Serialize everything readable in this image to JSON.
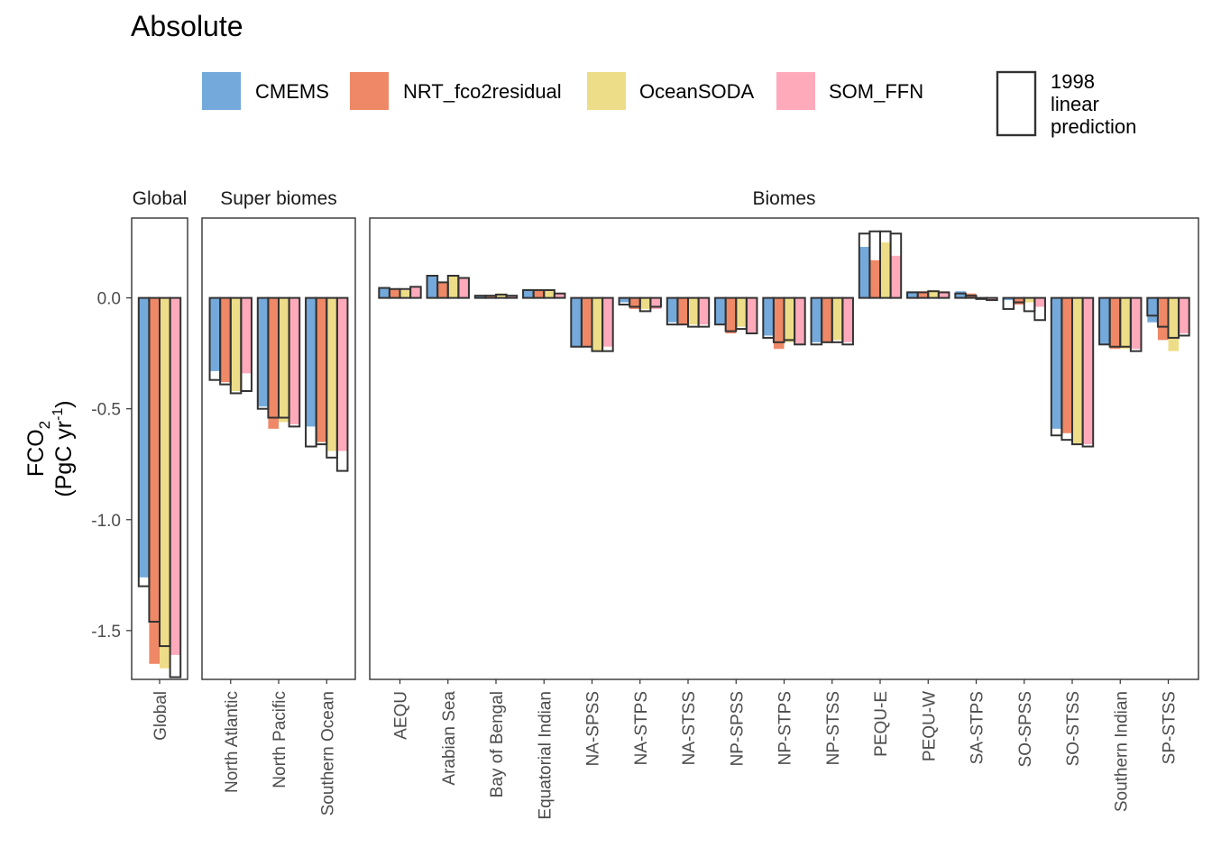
{
  "chart_data": {
    "type": "bar",
    "title": "Absolute",
    "ylabel": "FCO2 (PgC yr-1)",
    "ylabel_parts": {
      "line1_main": "FCO",
      "line1_sub": "2",
      "line2_main": "(PgC yr",
      "line2_sup": "-1",
      "line2_end": ")"
    },
    "ylim": [
      -1.72,
      0.36
    ],
    "yticks": [
      0.0,
      -0.5,
      -1.0,
      -1.5
    ],
    "ytick_labels": [
      "0.0",
      "-0.5",
      "-1.0",
      "-1.5"
    ],
    "series": [
      {
        "name": "CMEMS",
        "color": "#74A9DB"
      },
      {
        "name": "NRT_fco2residual",
        "color": "#EE8866"
      },
      {
        "name": "OceanSODA",
        "color": "#EEDD88"
      },
      {
        "name": "SOM_FFN",
        "color": "#FFAABB"
      }
    ],
    "outline_legend": {
      "line1": "1998",
      "line2": "linear",
      "line3": "prediction"
    },
    "grid": false,
    "legend_position": "top",
    "panels": [
      {
        "strip": "Global",
        "categories": [
          {
            "label": "Global",
            "values": [
              -1.26,
              -1.65,
              -1.67,
              -1.61
            ],
            "prediction": [
              -1.3,
              -1.46,
              -1.57,
              -1.71
            ]
          }
        ]
      },
      {
        "strip": "Super biomes",
        "categories": [
          {
            "label": "North Atlantic",
            "values": [
              -0.33,
              -0.38,
              -0.42,
              -0.34
            ],
            "prediction": [
              -0.37,
              -0.39,
              -0.43,
              -0.42
            ]
          },
          {
            "label": "North Pacific",
            "values": [
              -0.49,
              -0.59,
              -0.56,
              -0.57
            ],
            "prediction": [
              -0.5,
              -0.54,
              -0.54,
              -0.58
            ]
          },
          {
            "label": "Southern Ocean",
            "values": [
              -0.58,
              -0.65,
              -0.69,
              -0.69
            ],
            "prediction": [
              -0.67,
              -0.66,
              -0.72,
              -0.78
            ]
          }
        ]
      },
      {
        "strip": "Biomes",
        "categories": [
          {
            "label": "AEQU",
            "values": [
              0.045,
              0.04,
              0.035,
              0.05
            ],
            "prediction": [
              0.045,
              0.04,
              0.04,
              0.05
            ]
          },
          {
            "label": "Arabian Sea",
            "values": [
              0.1,
              0.07,
              0.1,
              0.09
            ],
            "prediction": [
              0.1,
              0.07,
              0.1,
              0.09
            ]
          },
          {
            "label": "Bay of Bengal",
            "values": [
              0.01,
              0.01,
              0.02,
              0.01
            ],
            "prediction": [
              0.01,
              0.01,
              0.015,
              0.01
            ]
          },
          {
            "label": "Equatorial Indian",
            "values": [
              0.04,
              0.035,
              0.035,
              0.02
            ],
            "prediction": [
              0.035,
              0.035,
              0.035,
              0.02
            ]
          },
          {
            "label": "NA-SPSS",
            "values": [
              -0.22,
              -0.22,
              -0.24,
              -0.22
            ],
            "prediction": [
              -0.22,
              -0.22,
              -0.24,
              -0.24
            ]
          },
          {
            "label": "NA-STPS",
            "values": [
              -0.02,
              -0.05,
              -0.05,
              -0.05
            ],
            "prediction": [
              -0.03,
              -0.04,
              -0.06,
              -0.04
            ]
          },
          {
            "label": "NA-STSS",
            "values": [
              -0.11,
              -0.12,
              -0.12,
              -0.12
            ],
            "prediction": [
              -0.12,
              -0.12,
              -0.13,
              -0.13
            ]
          },
          {
            "label": "NP-SPSS",
            "values": [
              -0.12,
              -0.16,
              -0.13,
              -0.16
            ],
            "prediction": [
              -0.12,
              -0.15,
              -0.14,
              -0.16
            ]
          },
          {
            "label": "NP-STPS",
            "values": [
              -0.17,
              -0.23,
              -0.2,
              -0.21
            ],
            "prediction": [
              -0.18,
              -0.2,
              -0.19,
              -0.21
            ]
          },
          {
            "label": "NP-STSS",
            "values": [
              -0.2,
              -0.2,
              -0.19,
              -0.2
            ],
            "prediction": [
              -0.21,
              -0.2,
              -0.2,
              -0.21
            ]
          },
          {
            "label": "PEQU-E",
            "values": [
              0.23,
              0.17,
              0.25,
              0.19
            ],
            "prediction": [
              0.29,
              0.3,
              0.3,
              0.29
            ]
          },
          {
            "label": "PEQU-W",
            "values": [
              0.03,
              0.03,
              0.035,
              0.03
            ],
            "prediction": [
              0.025,
              0.025,
              0.03,
              0.025
            ]
          },
          {
            "label": "SA-STPS",
            "values": [
              0.03,
              0.02,
              0.0,
              -0.01
            ],
            "prediction": [
              0.02,
              0.01,
              -0.005,
              -0.01
            ]
          },
          {
            "label": "SO-SPSS",
            "values": [
              -0.01,
              -0.03,
              -0.02,
              -0.04
            ],
            "prediction": [
              -0.05,
              -0.02,
              -0.06,
              -0.1
            ]
          },
          {
            "label": "SO-STSS",
            "values": [
              -0.59,
              -0.61,
              -0.66,
              -0.66
            ],
            "prediction": [
              -0.62,
              -0.64,
              -0.66,
              -0.67
            ]
          },
          {
            "label": "Southern Indian",
            "values": [
              -0.21,
              -0.23,
              -0.23,
              -0.23
            ],
            "prediction": [
              -0.21,
              -0.22,
              -0.22,
              -0.24
            ]
          },
          {
            "label": "SP-STSS",
            "values": [
              -0.11,
              -0.19,
              -0.24,
              -0.16
            ],
            "prediction": [
              -0.08,
              -0.13,
              -0.18,
              -0.17
            ]
          }
        ]
      }
    ]
  }
}
